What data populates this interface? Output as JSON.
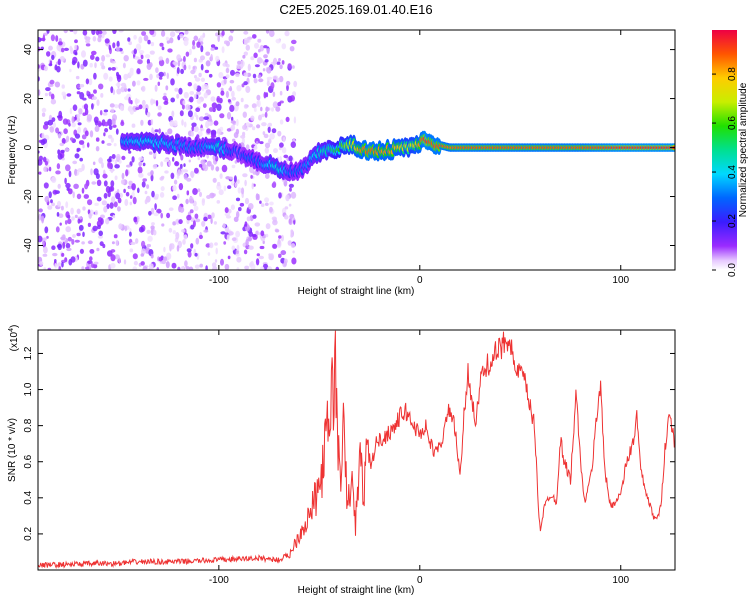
{
  "title": "C2E5.2025.169.01.40.E16",
  "colors": {
    "snr_line": "#ee3333",
    "axis": "#000000"
  },
  "chart_data": [
    {
      "type": "heatmap",
      "name": "spectrogram",
      "xlabel": "Height of straight line (km)",
      "ylabel": "Frequency (Hz)",
      "xlim": [
        -190,
        127
      ],
      "ylim": [
        -50,
        48
      ],
      "xticks": [
        -100,
        0,
        100
      ],
      "yticks": [
        -40,
        -20,
        0,
        20,
        40
      ],
      "colorbar": {
        "label": "Normalized spectral amplitude",
        "range": [
          0,
          0.98
        ],
        "ticks": [
          0.0,
          0.2,
          0.4,
          0.6,
          0.8
        ],
        "colormap": "rainbow (white-violet-blue-cyan-green-yellow-red)"
      },
      "ridge": {
        "x": [
          -148,
          -140,
          -130,
          -120,
          -110,
          -100,
          -95,
          -90,
          -85,
          -80,
          -75,
          -70,
          -65,
          -60,
          -55,
          -50,
          -45,
          -40,
          -35,
          -30,
          -25,
          -20,
          -15,
          -10,
          -5,
          0,
          3,
          5,
          10,
          15,
          20,
          40,
          60,
          80,
          100,
          127
        ],
        "y": [
          3,
          2,
          2,
          1,
          0,
          0,
          -1,
          -2,
          -4,
          -6,
          -7,
          -9,
          -10,
          -10,
          -6,
          -2,
          -1,
          0,
          1,
          0,
          -2,
          -1,
          -1,
          0,
          0,
          2,
          3,
          2,
          1,
          0,
          0,
          0,
          0,
          0,
          0,
          0
        ],
        "amplitude": [
          0.35,
          0.4,
          0.4,
          0.35,
          0.3,
          0.45,
          0.3,
          0.25,
          0.3,
          0.3,
          0.4,
          0.45,
          0.3,
          0.3,
          0.35,
          0.45,
          0.5,
          0.6,
          0.7,
          0.85,
          0.9,
          0.85,
          0.85,
          0.8,
          0.7,
          0.85,
          0.95,
          0.9,
          0.9,
          0.88,
          0.9,
          0.9,
          0.9,
          0.9,
          0.95,
          0.95
        ]
      }
    },
    {
      "type": "line",
      "name": "snr",
      "xlabel": "Height of straight line (km)",
      "ylabel": "SNR (10 * v/v)",
      "ylabel_multiplier": "(x10",
      "ylabel_multiplier_exp": "4",
      "ylabel_multiplier_close": ")",
      "xlim": [
        -190,
        127
      ],
      "ylim": [
        0,
        1.33
      ],
      "xticks": [
        -100,
        0,
        100
      ],
      "yticks": [
        0.2,
        0.4,
        0.6,
        0.8,
        1.0,
        1.2
      ],
      "ytick_labels": [
        "0.2",
        "0.4",
        "0.6",
        "0.8",
        "1.0",
        "1.2"
      ],
      "x": [
        -190,
        -160,
        -150,
        -140,
        -120,
        -100,
        -80,
        -70,
        -65,
        -60,
        -55,
        -50,
        -48,
        -46,
        -44,
        -42,
        -40,
        -38,
        -36,
        -34,
        -32,
        -30,
        -28,
        -26,
        -24,
        -22,
        -20,
        -17,
        -14,
        -12,
        -10,
        -7,
        -4,
        0,
        3,
        5,
        8,
        10,
        15,
        18,
        20,
        22,
        24,
        26,
        28,
        30,
        33,
        36,
        40,
        43,
        45,
        47,
        50,
        52,
        55,
        57,
        58,
        59,
        60,
        62,
        65,
        68,
        70,
        72,
        75,
        78,
        80,
        82,
        84,
        86,
        88,
        89,
        90,
        92,
        95,
        100,
        103,
        106,
        108,
        110,
        112,
        114,
        116,
        118,
        120,
        122,
        124,
        126,
        127
      ],
      "y": [
        0.02,
        0.03,
        0.03,
        0.04,
        0.04,
        0.05,
        0.06,
        0.05,
        0.08,
        0.2,
        0.3,
        0.45,
        0.6,
        0.75,
        0.95,
        1.1,
        0.5,
        0.75,
        0.35,
        0.5,
        0.25,
        0.6,
        0.45,
        0.65,
        0.58,
        0.7,
        0.72,
        0.74,
        0.78,
        0.8,
        0.85,
        0.88,
        0.82,
        0.75,
        0.8,
        0.7,
        0.65,
        0.68,
        0.9,
        0.75,
        0.5,
        0.85,
        1.1,
        0.95,
        0.8,
        1.05,
        1.12,
        1.18,
        1.22,
        1.28,
        1.3,
        1.1,
        1.1,
        1.05,
        0.9,
        0.8,
        0.6,
        0.35,
        0.22,
        0.35,
        0.42,
        0.38,
        0.72,
        0.6,
        0.5,
        1.0,
        0.58,
        0.38,
        0.45,
        0.6,
        0.85,
        0.95,
        1.05,
        0.55,
        0.35,
        0.42,
        0.6,
        0.7,
        0.85,
        0.55,
        0.45,
        0.38,
        0.3,
        0.28,
        0.35,
        0.68,
        0.85,
        0.78,
        0.65
      ]
    }
  ]
}
